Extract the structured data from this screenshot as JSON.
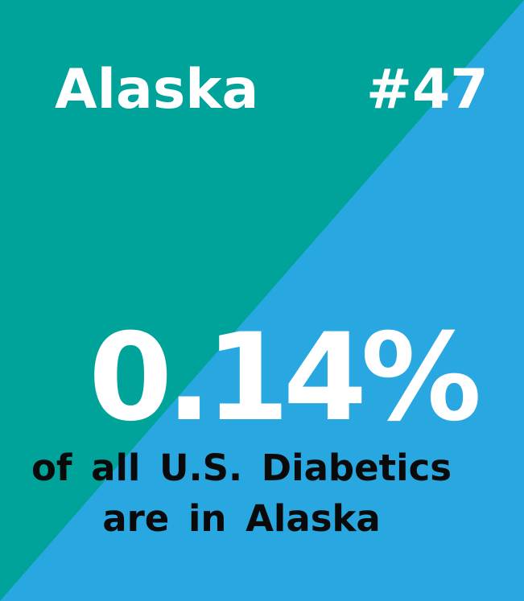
{
  "colors": {
    "teal": "#00a39a",
    "blue": "#29a7e1",
    "text_white": "#ffffff",
    "text_dark": "#0a0a0a"
  },
  "header": {
    "state": "Alaska",
    "rank": "#47"
  },
  "stat": {
    "value": "0.14%",
    "caption_line1": "of all U.S. Diabetics",
    "caption_line2": "are in Alaska"
  }
}
